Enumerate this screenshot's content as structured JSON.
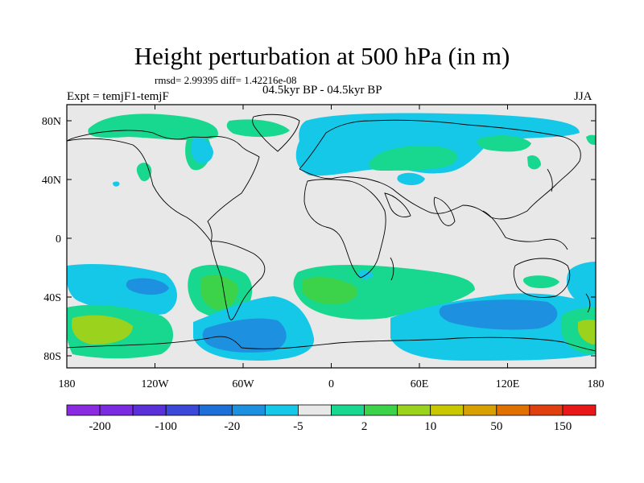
{
  "header": {
    "title": "Height perturbation at 500 hPa (in m)",
    "stats": "rmsd= 2.99395 diff= 1.42216e-08",
    "experiment": "Expt = temjF1-temjF",
    "period": "04.5kyr BP - 04.5kyr BP",
    "season": "JJA"
  },
  "axes": {
    "lat_ticks": [
      "80N",
      "40N",
      "0",
      "40S",
      "80S"
    ],
    "lon_ticks": [
      "180",
      "120W",
      "60W",
      "0",
      "60E",
      "120E",
      "180"
    ]
  },
  "colorbar": {
    "colors": [
      "#8a2be2",
      "#7b2be2",
      "#5a31d8",
      "#3c48d8",
      "#1f6fd8",
      "#1e90e0",
      "#16c8e8",
      "#e8e8e8",
      "#18d890",
      "#3cd24a",
      "#9ad21e",
      "#c8c800",
      "#d8a000",
      "#e07000",
      "#e04010",
      "#e81818"
    ],
    "labels": [
      "-200",
      "-100",
      "-20",
      "-5",
      "2",
      "10",
      "50",
      "150"
    ]
  },
  "map": {
    "background": "#e8e8e8",
    "regions": [
      {
        "color": "#16c8e8",
        "label": "north-atlantic-europe-low"
      },
      {
        "color": "#18d890",
        "label": "arctic-canada-high"
      },
      {
        "color": "#3cd24a",
        "label": "southern-pacific-high"
      },
      {
        "color": "#1e90e0",
        "label": "southern-ocean-low"
      },
      {
        "color": "#9ad21e",
        "label": "south-pacific-core"
      }
    ]
  }
}
